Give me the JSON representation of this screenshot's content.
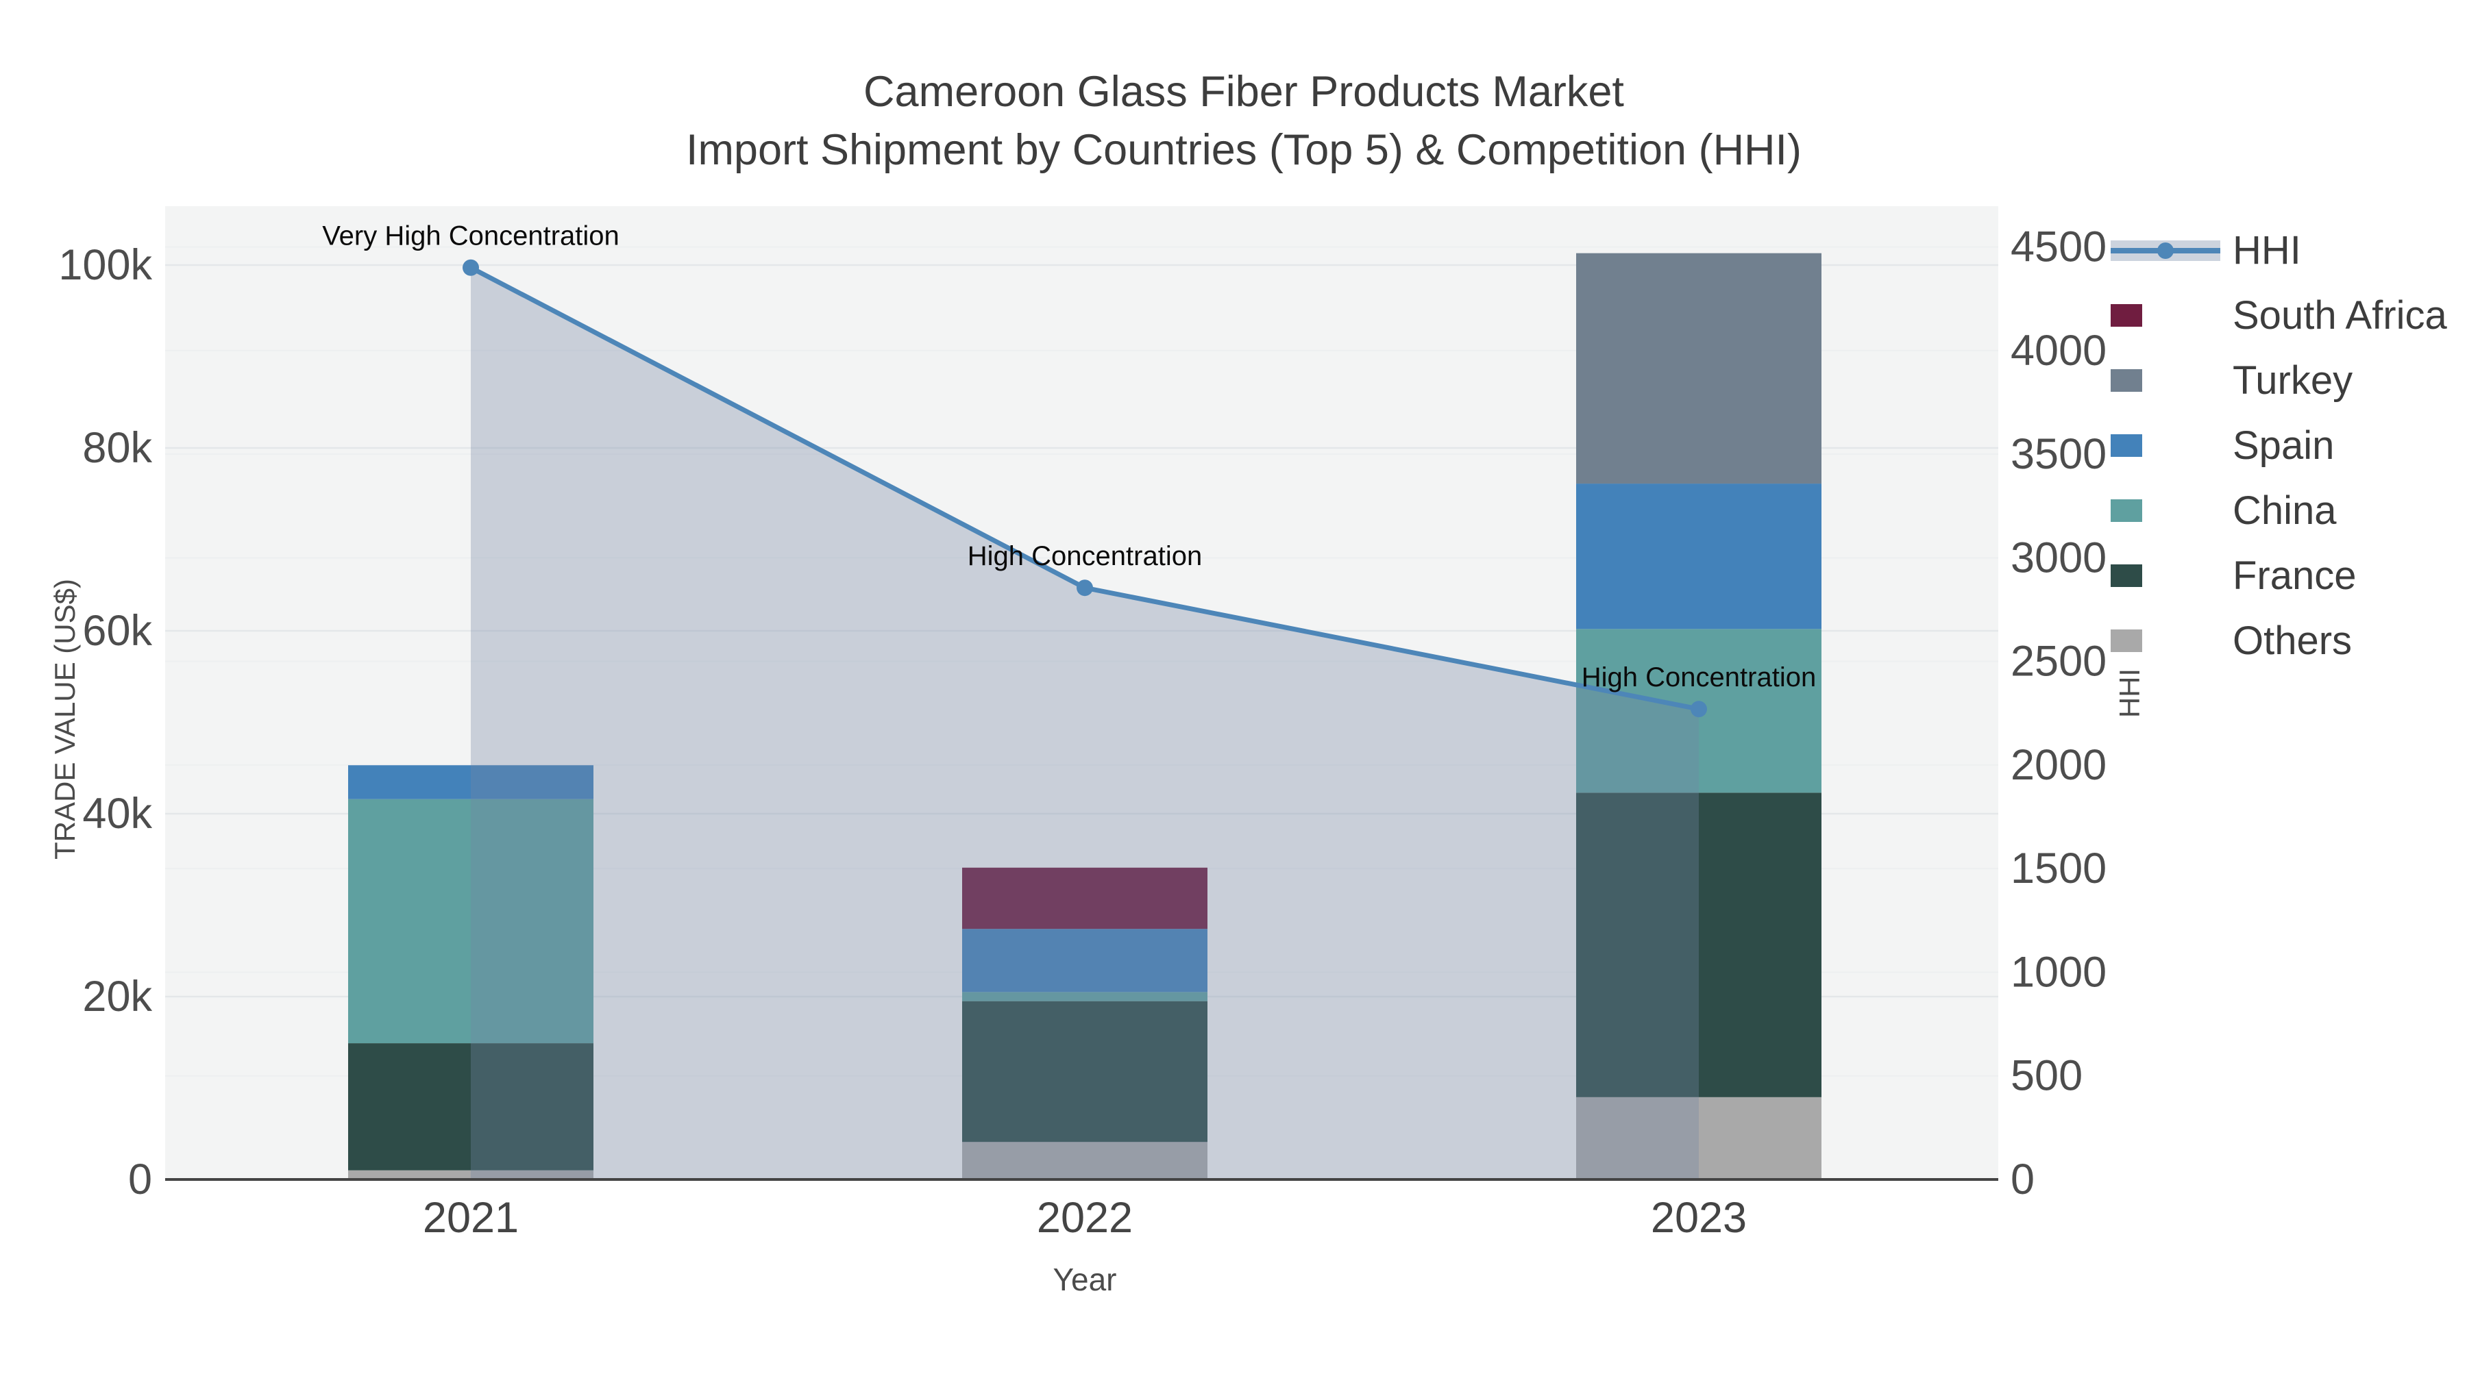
{
  "title": {
    "line1": "Cameroon Glass Fiber Products Market",
    "line2": "Import Shipment by Countries (Top 5) & Competition (HHI)"
  },
  "axes": {
    "x_title": "Year",
    "y1_title": "TRADE VALUE (US$)",
    "y2_title": "HHI",
    "y1_tick_labels": [
      "0",
      "20k",
      "40k",
      "60k",
      "80k",
      "100k"
    ],
    "y1_tick_values": [
      0,
      20000,
      40000,
      60000,
      80000,
      100000
    ],
    "y2_tick_labels": [
      "0",
      "500",
      "1000",
      "1500",
      "2000",
      "2500",
      "3000",
      "3500",
      "4000",
      "4500"
    ],
    "y2_tick_values": [
      0,
      500,
      1000,
      1500,
      2000,
      2500,
      3000,
      3500,
      4000,
      4500
    ]
  },
  "chart_data": {
    "type": "bar+line",
    "categories": [
      "2021",
      "2022",
      "2023"
    ],
    "bar_stack_order_bottom_to_top": [
      "Others",
      "France",
      "China",
      "Spain",
      "Turkey",
      "South Africa"
    ],
    "series": [
      {
        "name": "Others",
        "color": "#a9a9a9",
        "values": [
          1000,
          4100,
          9000
        ]
      },
      {
        "name": "France",
        "color": "#2e4c48",
        "values": [
          13900,
          15400,
          33300
        ]
      },
      {
        "name": "China",
        "color": "#5fa0a0",
        "values": [
          26700,
          1000,
          17900
        ]
      },
      {
        "name": "Spain",
        "color": "#4382ba",
        "values": [
          3700,
          6900,
          15900
        ]
      },
      {
        "name": "Turkey",
        "color": "#71808f",
        "values": [
          0,
          0,
          25200
        ]
      },
      {
        "name": "South Africa",
        "color": "#701d40",
        "values": [
          0,
          6700,
          0
        ]
      }
    ],
    "bar_totals": [
      45300,
      34100,
      101300
    ],
    "line_series": {
      "name": "HHI",
      "color": "#4d86b8",
      "area_fill": "rgba(115,135,165,0.33)",
      "values": [
        4400,
        2855,
        2270
      ]
    },
    "annotations": [
      "Very High Concentration",
      "High Concentration",
      "High Concentration"
    ],
    "title": "Cameroon Glass Fiber Products Market — Import Shipment by Countries (Top 5) & Competition (HHI)",
    "xlabel": "Year",
    "ylabel": "TRADE VALUE (US$)",
    "y2label": "HHI",
    "ylim": [
      0,
      106400
    ],
    "y2lim": [
      0,
      4697
    ],
    "grid": true,
    "legend_position": "top-right-outside",
    "plot_bg": "#f3f4f4"
  },
  "legend": {
    "order": [
      "HHI",
      "South Africa",
      "Turkey",
      "Spain",
      "China",
      "France",
      "Others"
    ]
  }
}
